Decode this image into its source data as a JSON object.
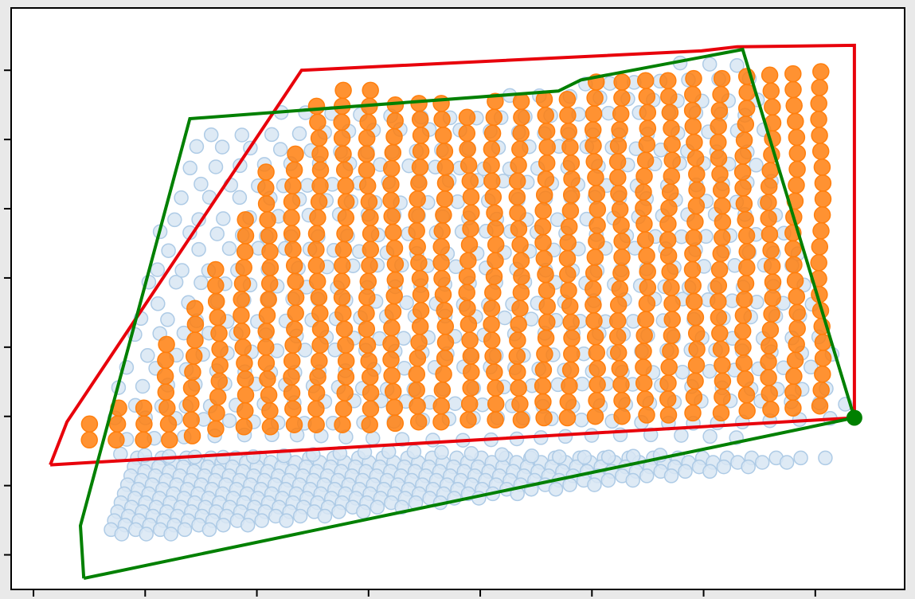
{
  "chart_data": {
    "type": "scatter",
    "title": "",
    "xlabel": "",
    "ylabel": "",
    "xlim": [
      -0.2,
      7.8
    ],
    "ylim": [
      -0.5,
      7.9
    ],
    "x_ticks": [
      0,
      1,
      2,
      3,
      4,
      5,
      6,
      7
    ],
    "y_ticks": [
      0,
      1,
      2,
      3,
      4,
      5,
      6,
      7
    ],
    "grid": false,
    "legend": "none",
    "colors": {
      "background_points": "#aecbe6",
      "selected_points": "#ff7f0e",
      "red_outline": "#e8000b",
      "green_outline": "#008000",
      "plot_frame": "#000000",
      "outer_background": "#e9e9e9"
    },
    "point_cloud": {
      "background_rows": {
        "y_start": 1.4,
        "y_end": 0.3,
        "count": 18,
        "x_left_start": 0.93,
        "x_left_end": 0.68,
        "x_right_start": 7.2,
        "x_right_end": 1.28,
        "spacing": 0.22
      },
      "selected_columns": [
        {
          "x": 0.52,
          "y_min": 1.66,
          "y_max": 1.95
        },
        {
          "x": 0.75,
          "y_min": 1.66,
          "y_max": 2.25
        },
        {
          "x": 0.97,
          "y_min": 1.66,
          "y_max": 2.28
        },
        {
          "x": 1.2,
          "y_min": 1.66,
          "y_max": 3.1
        },
        {
          "x": 1.43,
          "y_min": 1.72,
          "y_max": 3.65
        },
        {
          "x": 1.65,
          "y_min": 1.82,
          "y_max": 4.3
        },
        {
          "x": 1.88,
          "y_min": 1.85,
          "y_max": 5.05
        },
        {
          "x": 2.1,
          "y_min": 1.85,
          "y_max": 5.65
        },
        {
          "x": 2.33,
          "y_min": 1.88,
          "y_max": 5.95
        },
        {
          "x": 2.55,
          "y_min": 1.88,
          "y_max": 6.55
        },
        {
          "x": 2.78,
          "y_min": 1.88,
          "y_max": 6.85
        },
        {
          "x": 3.0,
          "y_min": 1.88,
          "y_max": 6.9
        },
        {
          "x": 3.22,
          "y_min": 1.9,
          "y_max": 6.6
        },
        {
          "x": 3.45,
          "y_min": 1.92,
          "y_max": 6.7
        },
        {
          "x": 3.67,
          "y_min": 1.92,
          "y_max": 6.6
        },
        {
          "x": 3.9,
          "y_min": 1.95,
          "y_max": 6.5
        },
        {
          "x": 4.12,
          "y_min": 1.95,
          "y_max": 6.7
        },
        {
          "x": 4.35,
          "y_min": 1.95,
          "y_max": 6.7
        },
        {
          "x": 4.58,
          "y_min": 1.98,
          "y_max": 6.8
        },
        {
          "x": 4.8,
          "y_min": 1.98,
          "y_max": 6.8
        },
        {
          "x": 5.03,
          "y_min": 2.0,
          "y_max": 6.9
        },
        {
          "x": 5.25,
          "y_min": 2.0,
          "y_max": 6.9
        },
        {
          "x": 5.48,
          "y_min": 2.02,
          "y_max": 7.0
        },
        {
          "x": 5.7,
          "y_min": 2.02,
          "y_max": 7.0
        },
        {
          "x": 5.92,
          "y_min": 2.05,
          "y_max": 7.0
        },
        {
          "x": 6.15,
          "y_min": 2.05,
          "y_max": 7.05
        },
        {
          "x": 6.37,
          "y_min": 2.08,
          "y_max": 7.1
        },
        {
          "x": 6.6,
          "y_min": 2.1,
          "y_max": 7.15
        },
        {
          "x": 6.82,
          "y_min": 2.12,
          "y_max": 7.15
        },
        {
          "x": 7.05,
          "y_min": 2.15,
          "y_max": 7.15
        }
      ],
      "selected_spacing": 0.23,
      "background_grid": {
        "x_min": 0.75,
        "x_max": 7.25,
        "y_min": 1.45,
        "y_max": 7.25,
        "spacing": 0.245
      }
    },
    "red_polygon": [
      [
        0.15,
        1.3
      ],
      [
        0.3,
        1.92
      ],
      [
        2.4,
        7.0
      ],
      [
        5.98,
        7.28
      ],
      [
        6.3,
        7.34
      ],
      [
        7.35,
        7.36
      ],
      [
        7.35,
        1.98
      ]
    ],
    "green_polygon": [
      [
        0.45,
        -0.34
      ],
      [
        0.42,
        0.42
      ],
      [
        1.4,
        6.3
      ],
      [
        4.7,
        6.7
      ],
      [
        4.9,
        6.86
      ],
      [
        6.35,
        7.3
      ],
      [
        7.35,
        1.98
      ],
      [
        0.45,
        -0.34
      ]
    ],
    "marker": {
      "x": 7.35,
      "y": 1.98
    }
  }
}
